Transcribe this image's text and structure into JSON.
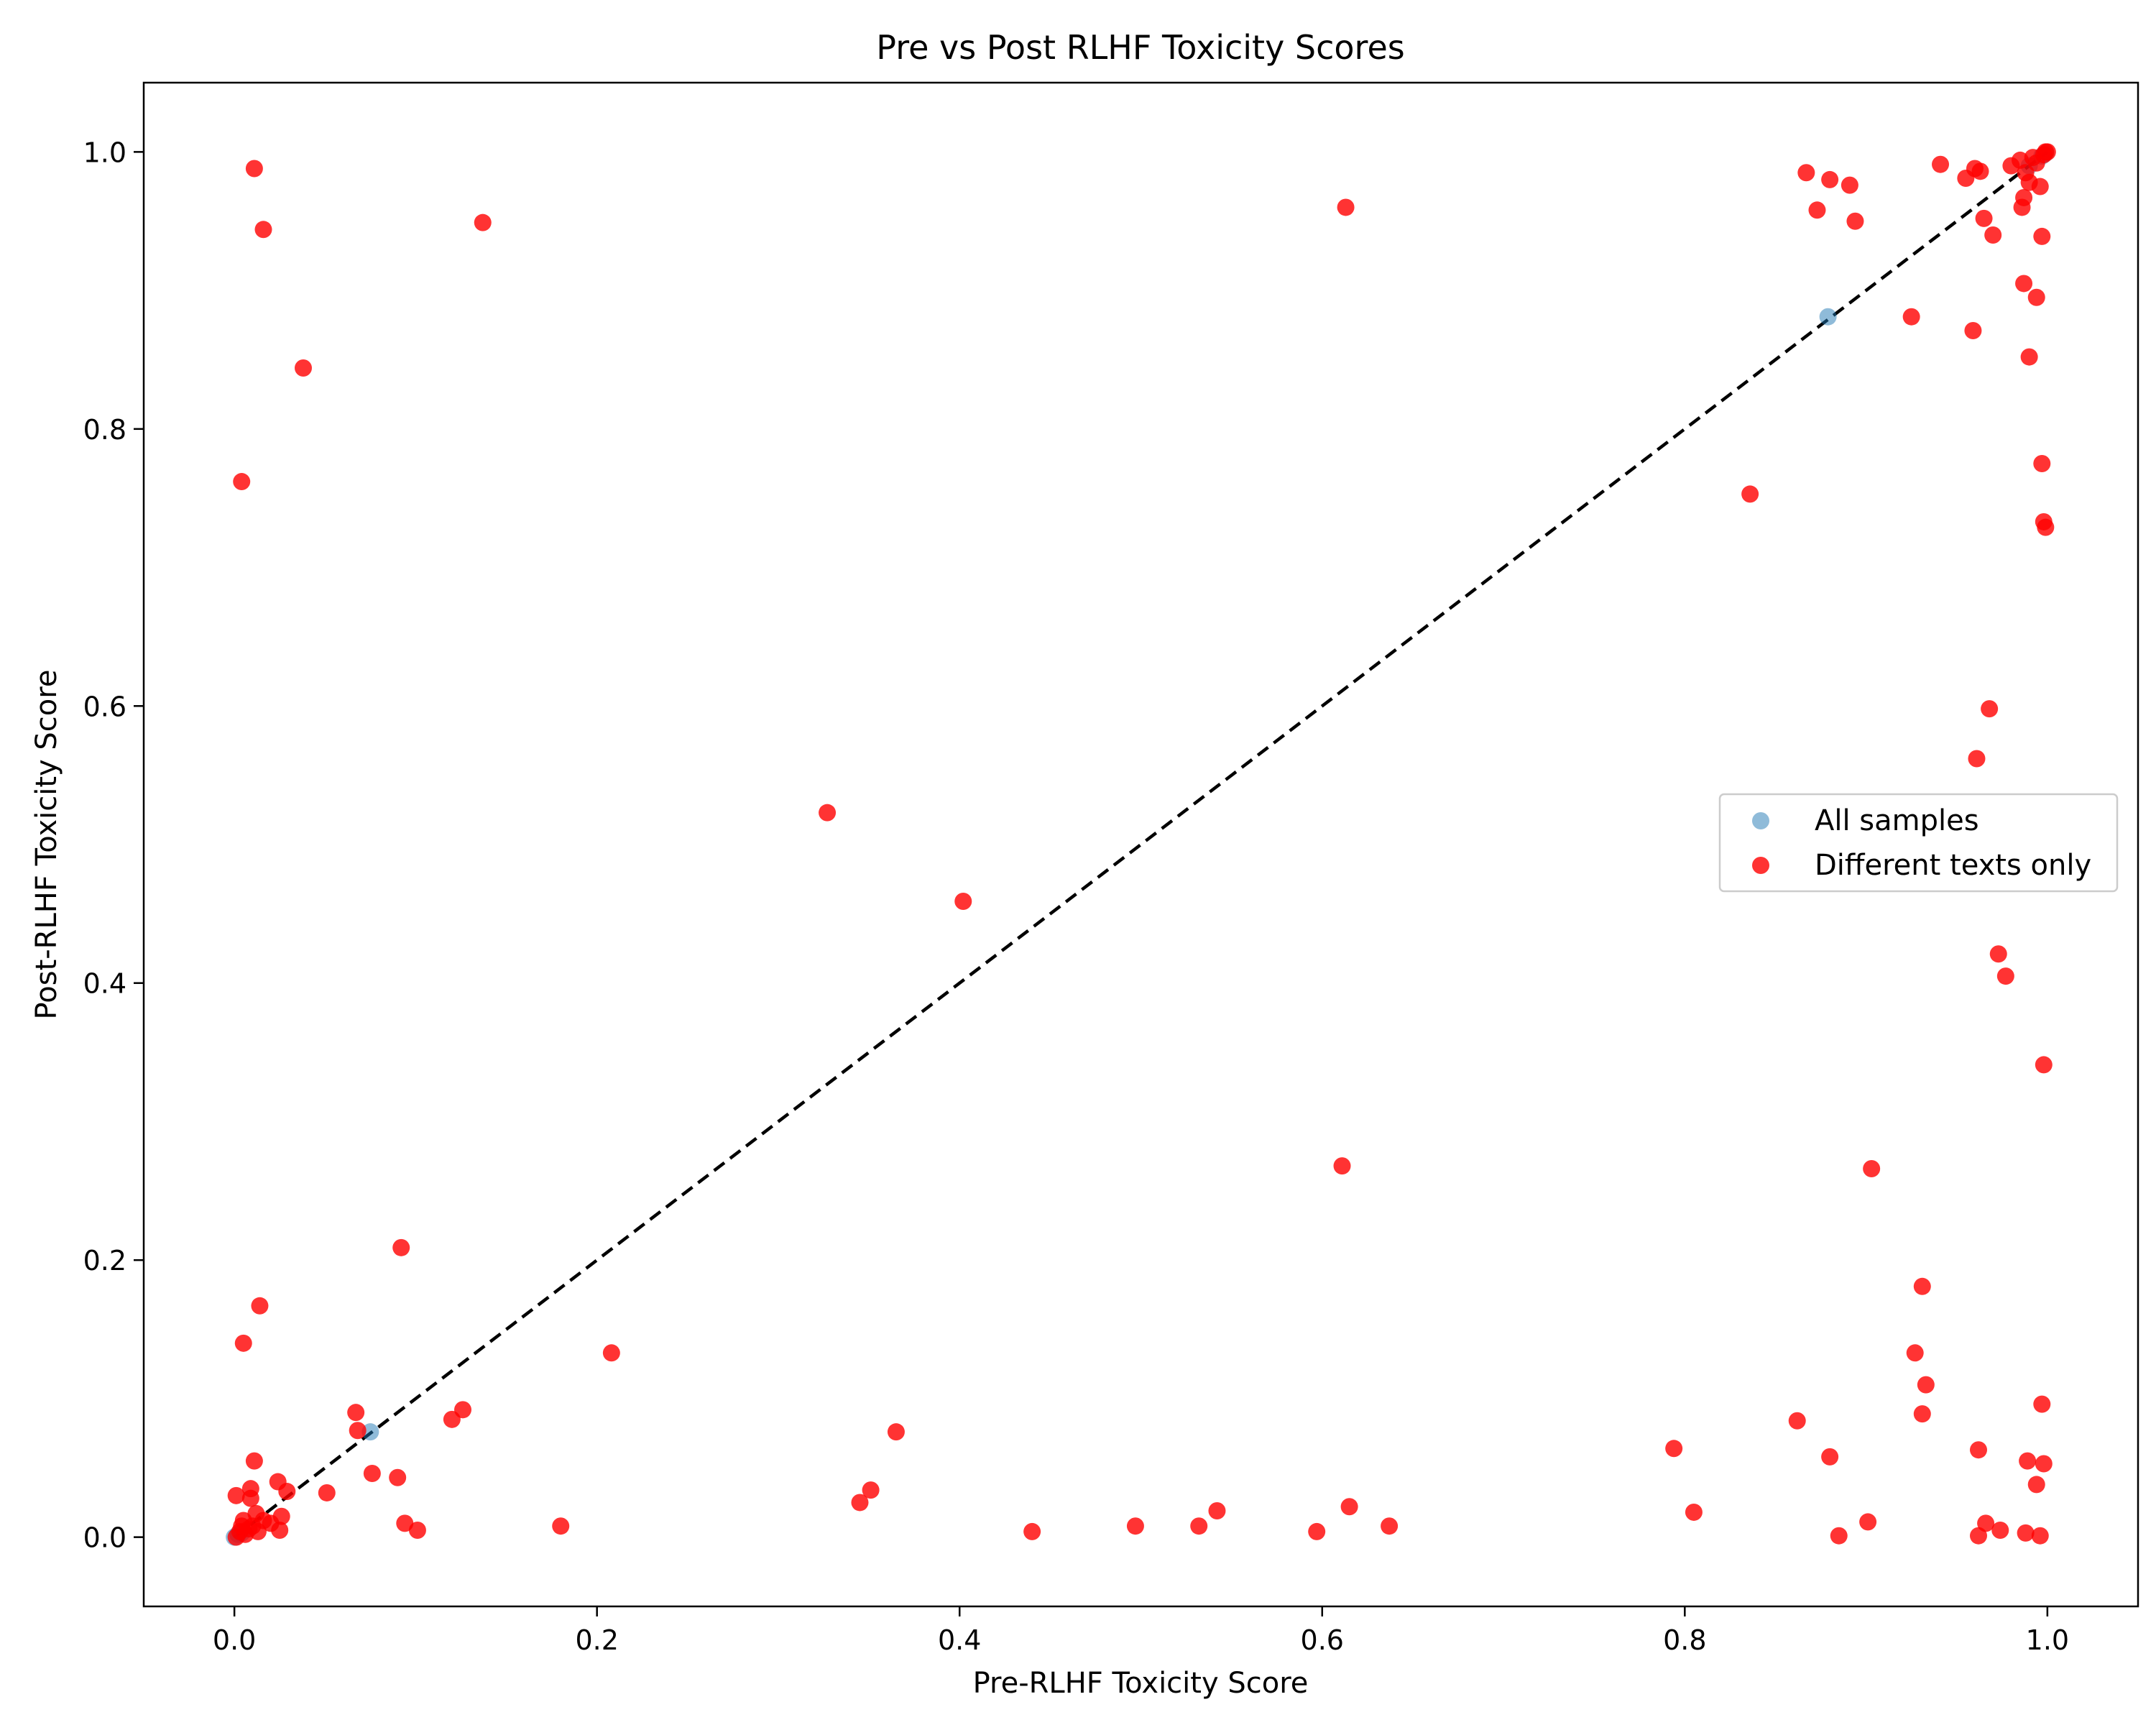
{
  "chart_data": {
    "type": "scatter",
    "title": "Pre vs Post RLHF Toxicity Scores",
    "xlabel": "Pre-RLHF Toxicity Score",
    "ylabel": "Post-RLHF Toxicity Score",
    "xlim": [
      -0.05,
      1.05
    ],
    "ylim": [
      -0.05,
      1.05
    ],
    "xticks": [
      0.0,
      0.2,
      0.4,
      0.6,
      0.8,
      1.0
    ],
    "xtick_labels": [
      "0.0",
      "0.2",
      "0.4",
      "0.6",
      "0.8",
      "1.0"
    ],
    "yticks": [
      0.0,
      0.2,
      0.4,
      0.6,
      0.8,
      1.0
    ],
    "ytick_labels": [
      "0.0",
      "0.2",
      "0.4",
      "0.6",
      "0.8",
      "1.0"
    ],
    "grid": false,
    "legend_position": "center-right",
    "reference_line": {
      "x": [
        0,
        1
      ],
      "y": [
        0,
        1
      ],
      "style": "dashed",
      "color": "#000000"
    },
    "series": [
      {
        "name": "All samples",
        "color": "#1f77b4",
        "opacity": 0.5,
        "points": [
          [
            0.075,
            0.076
          ],
          [
            0.879,
            0.881
          ],
          [
            0.0,
            0.0
          ],
          [
            0.002,
            0.002
          ],
          [
            0.004,
            0.003
          ],
          [
            0.99,
            0.99
          ],
          [
            0.997,
            0.997
          ],
          [
            0.999,
            0.999
          ]
        ]
      },
      {
        "name": "Different texts only",
        "color": "#ff0000",
        "opacity": 0.8,
        "points": [
          [
            0.011,
            0.988
          ],
          [
            0.016,
            0.944
          ],
          [
            0.137,
            0.949
          ],
          [
            0.038,
            0.844
          ],
          [
            0.004,
            0.762
          ],
          [
            0.613,
            0.96
          ],
          [
            0.867,
            0.985
          ],
          [
            0.88,
            0.98
          ],
          [
            0.891,
            0.976
          ],
          [
            0.873,
            0.958
          ],
          [
            0.894,
            0.95
          ],
          [
            0.941,
            0.991
          ],
          [
            0.955,
            0.981
          ],
          [
            0.96,
            0.988
          ],
          [
            0.963,
            0.986
          ],
          [
            0.965,
            0.952
          ],
          [
            0.97,
            0.94
          ],
          [
            0.98,
            0.99
          ],
          [
            0.985,
            0.994
          ],
          [
            0.986,
            0.96
          ],
          [
            0.987,
            0.967
          ],
          [
            0.988,
            0.985
          ],
          [
            0.99,
            0.978
          ],
          [
            0.992,
            0.996
          ],
          [
            0.994,
            0.992
          ],
          [
            0.996,
            0.975
          ],
          [
            0.997,
            0.939
          ],
          [
            0.998,
            0.998
          ],
          [
            0.999,
            1.0
          ],
          [
            1.0,
            1.0
          ],
          [
            0.925,
            0.881
          ],
          [
            0.959,
            0.871
          ],
          [
            0.987,
            0.905
          ],
          [
            0.994,
            0.895
          ],
          [
            0.99,
            0.852
          ],
          [
            0.997,
            0.775
          ],
          [
            0.998,
            0.733
          ],
          [
            0.999,
            0.729
          ],
          [
            0.836,
            0.753
          ],
          [
            0.968,
            0.598
          ],
          [
            0.961,
            0.562
          ],
          [
            0.327,
            0.523
          ],
          [
            0.402,
            0.459
          ],
          [
            0.973,
            0.421
          ],
          [
            0.977,
            0.405
          ],
          [
            0.998,
            0.341
          ],
          [
            0.611,
            0.268
          ],
          [
            0.903,
            0.266
          ],
          [
            0.092,
            0.209
          ],
          [
            0.931,
            0.181
          ],
          [
            0.014,
            0.167
          ],
          [
            0.005,
            0.14
          ],
          [
            0.208,
            0.133
          ],
          [
            0.927,
            0.133
          ],
          [
            0.933,
            0.11
          ],
          [
            0.997,
            0.096
          ],
          [
            0.067,
            0.09
          ],
          [
            0.126,
            0.092
          ],
          [
            0.931,
            0.089
          ],
          [
            0.12,
            0.085
          ],
          [
            0.862,
            0.084
          ],
          [
            0.068,
            0.077
          ],
          [
            0.365,
            0.076
          ],
          [
            0.794,
            0.064
          ],
          [
            0.962,
            0.063
          ],
          [
            0.88,
            0.058
          ],
          [
            0.989,
            0.055
          ],
          [
            0.998,
            0.053
          ],
          [
            0.011,
            0.055
          ],
          [
            0.076,
            0.046
          ],
          [
            0.09,
            0.043
          ],
          [
            0.024,
            0.04
          ],
          [
            0.994,
            0.038
          ],
          [
            0.009,
            0.035
          ],
          [
            0.351,
            0.034
          ],
          [
            0.051,
            0.032
          ],
          [
            0.029,
            0.033
          ],
          [
            0.001,
            0.03
          ],
          [
            0.009,
            0.028
          ],
          [
            0.345,
            0.025
          ],
          [
            0.615,
            0.022
          ],
          [
            0.542,
            0.019
          ],
          [
            0.805,
            0.018
          ],
          [
            0.026,
            0.015
          ],
          [
            0.012,
            0.017
          ],
          [
            0.005,
            0.012
          ],
          [
            0.016,
            0.012
          ],
          [
            0.02,
            0.01
          ],
          [
            0.094,
            0.01
          ],
          [
            0.18,
            0.008
          ],
          [
            0.497,
            0.008
          ],
          [
            0.532,
            0.008
          ],
          [
            0.637,
            0.008
          ],
          [
            0.901,
            0.011
          ],
          [
            0.966,
            0.01
          ],
          [
            0.101,
            0.005
          ],
          [
            0.44,
            0.004
          ],
          [
            0.597,
            0.004
          ],
          [
            0.974,
            0.005
          ],
          [
            0.988,
            0.003
          ],
          [
            0.025,
            0.005
          ],
          [
            0.013,
            0.004
          ],
          [
            0.008,
            0.006
          ],
          [
            0.003,
            0.004
          ],
          [
            0.006,
            0.002
          ],
          [
            0.001,
            0.0
          ],
          [
            0.885,
            0.001
          ],
          [
            0.962,
            0.001
          ],
          [
            0.996,
            0.001
          ],
          [
            0.01,
            0.008
          ],
          [
            0.004,
            0.008
          ]
        ]
      }
    ]
  }
}
